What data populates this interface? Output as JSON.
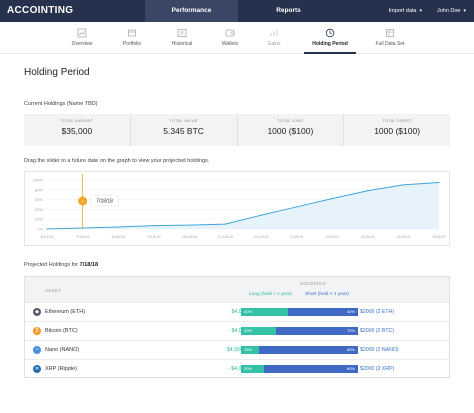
{
  "nav": {
    "brand": "ACCOINTING",
    "tabs": [
      {
        "label": "Performance",
        "active": true
      },
      {
        "label": "Reports",
        "active": false
      }
    ],
    "import_label": "Import data",
    "user_label": "John Doe"
  },
  "subnav": [
    {
      "label": "Overview",
      "icon": "overview-icon"
    },
    {
      "label": "Portfolio",
      "icon": "portfolio-icon"
    },
    {
      "label": "Historical",
      "icon": "historical-icon"
    },
    {
      "label": "Wallets",
      "icon": "wallets-icon"
    },
    {
      "label": "Gains",
      "icon": "gains-icon"
    },
    {
      "label": "Holding Period",
      "icon": "clock-icon",
      "active": true
    },
    {
      "label": "Full Data Set",
      "icon": "dataset-icon"
    }
  ],
  "page_title": "Holding Period",
  "holdings": {
    "label": "Current Holdings (Name TBD)",
    "stats": [
      {
        "label": "TOTAL AMOUNT",
        "value": "$35,000"
      },
      {
        "label": "TOTAL VALUE",
        "value": "5.345 BTC"
      },
      {
        "label": "TOTAL LONG",
        "value": "1000 ($100)"
      },
      {
        "label": "TOTAL SHORT",
        "value": "1000 ($100)"
      }
    ]
  },
  "slider_hint": "Drag the slider to a future date on the graph to view your projected holdings.",
  "chart_data": {
    "type": "line",
    "yticks": [
      "100%",
      "80%",
      "60%",
      "40%",
      "20%",
      "0%"
    ],
    "x": [
      "6/14/18",
      "7/18/18",
      "8/18/18",
      "9/18/18",
      "10/18/18",
      "11/18/18",
      "12/18/18",
      "1/18/19",
      "2/18/19",
      "3/18/19",
      "4/18/19",
      "5/18/19"
    ],
    "values": [
      0,
      2,
      4,
      7,
      8,
      10,
      28,
      45,
      62,
      78,
      90,
      95
    ],
    "ylim": [
      0,
      100
    ],
    "slider_value": "7/18/18",
    "grid": true,
    "colors": {
      "line": "#3fa5d9",
      "area": "#e7f3fb",
      "slider": "#f4a52a"
    }
  },
  "projected": {
    "label": "Projected Holdings for",
    "date": "7/18/18",
    "headers": {
      "asset": "ASSET",
      "holdings": "HOLDINGS",
      "long": "Long (held > 1 year)",
      "short": "Short (held < 1 year)"
    },
    "rows": [
      {
        "name": "Ethereum (ETH)",
        "icon": "ethereum-icon",
        "color": "#5a5a6e",
        "long": "$4,000 (4 ETH)",
        "short": "$2000 (2 ETH)",
        "long_pct": 40,
        "short_pct": 40,
        "long_label": "40%",
        "short_label": "40%"
      },
      {
        "name": "Bitcoin (BTC)",
        "icon": "bitcoin-icon",
        "color": "#f7931a",
        "long": "- $4,000 (4 BTC)",
        "short": "$2000 (2 BTC)",
        "long_pct": 30,
        "short_pct": 70,
        "long_label": "30%",
        "short_label": "70%"
      },
      {
        "name": "Nano (NANO)",
        "icon": "nano-icon",
        "color": "#4a90e2",
        "long": "$4,000 (4 NANO)",
        "short": "$2000 (2 NANO)",
        "long_pct": 15,
        "short_pct": 85,
        "long_label": "15%",
        "short_label": "85%"
      },
      {
        "name": "XRP (Ripple)",
        "icon": "xrp-icon",
        "color": "#2a6fb0",
        "long": "- $4,000 (4 XRP)",
        "short": "$2000 (2 XRP)",
        "long_pct": 20,
        "short_pct": 80,
        "long_label": "20%",
        "short_label": "80%"
      }
    ]
  }
}
